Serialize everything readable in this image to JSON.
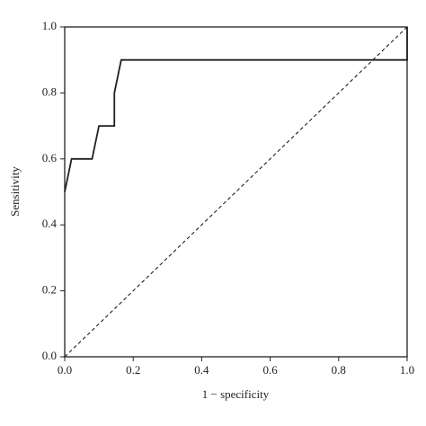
{
  "chart_data": {
    "type": "line",
    "xlabel": "1 − specificity",
    "ylabel": "Sensitivity",
    "xlim": [
      0,
      1
    ],
    "ylim": [
      0,
      1
    ],
    "xticks": [
      {
        "value": 0,
        "label": "0.0"
      },
      0.2,
      0.4,
      0.6,
      0.8,
      {
        "value": 1,
        "label": "1.0"
      }
    ],
    "yticks": [
      {
        "value": 0,
        "label": "0.0"
      },
      0.2,
      0.4,
      0.6,
      0.8,
      {
        "value": 1,
        "label": "1.0"
      }
    ],
    "grid": false,
    "series": [
      {
        "color": "#231f20",
        "linestyle": "solid",
        "x": [
          0,
          0.02,
          0.08,
          0.1,
          0.145,
          0.145,
          0.165,
          1,
          1
        ],
        "values": [
          0.5,
          0.6,
          0.6,
          0.7,
          0.7,
          0.8,
          0.9,
          0.9,
          1
        ]
      },
      {
        "color": "#231f20",
        "linestyle": "dashed",
        "x": [
          0,
          1
        ],
        "values": [
          0,
          1
        ]
      }
    ]
  }
}
